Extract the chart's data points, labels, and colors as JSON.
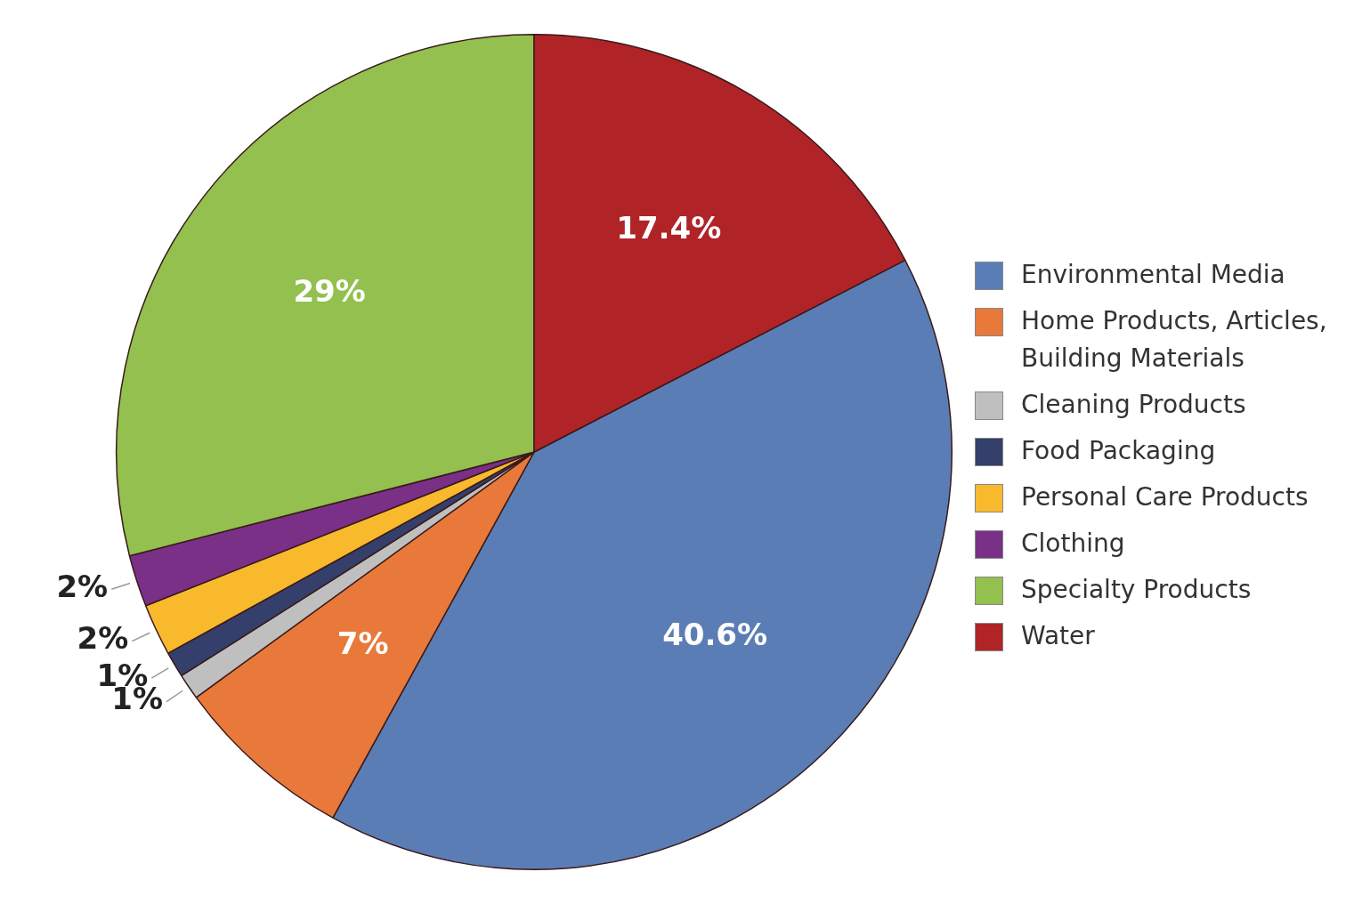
{
  "chart_data": {
    "type": "pie",
    "categories": [
      "Environmental Media",
      "Home Products, Articles, Building Materials",
      "Cleaning Products",
      "Food Packaging",
      "Personal Care Products",
      "Clothing",
      "Specialty Products",
      "Water"
    ],
    "values": [
      40.6,
      7,
      1,
      1,
      2,
      2,
      29,
      17.4
    ],
    "value_labels": [
      "40.6%",
      "7%",
      "1%",
      "1%",
      "2%",
      "2%",
      "29%",
      "17.4%"
    ],
    "colors": [
      "#5b7db5",
      "#e8793a",
      "#bfbfbf",
      "#343f6b",
      "#f9b92d",
      "#7a3087",
      "#93c04e",
      "#b02428"
    ],
    "legend": "right"
  }
}
